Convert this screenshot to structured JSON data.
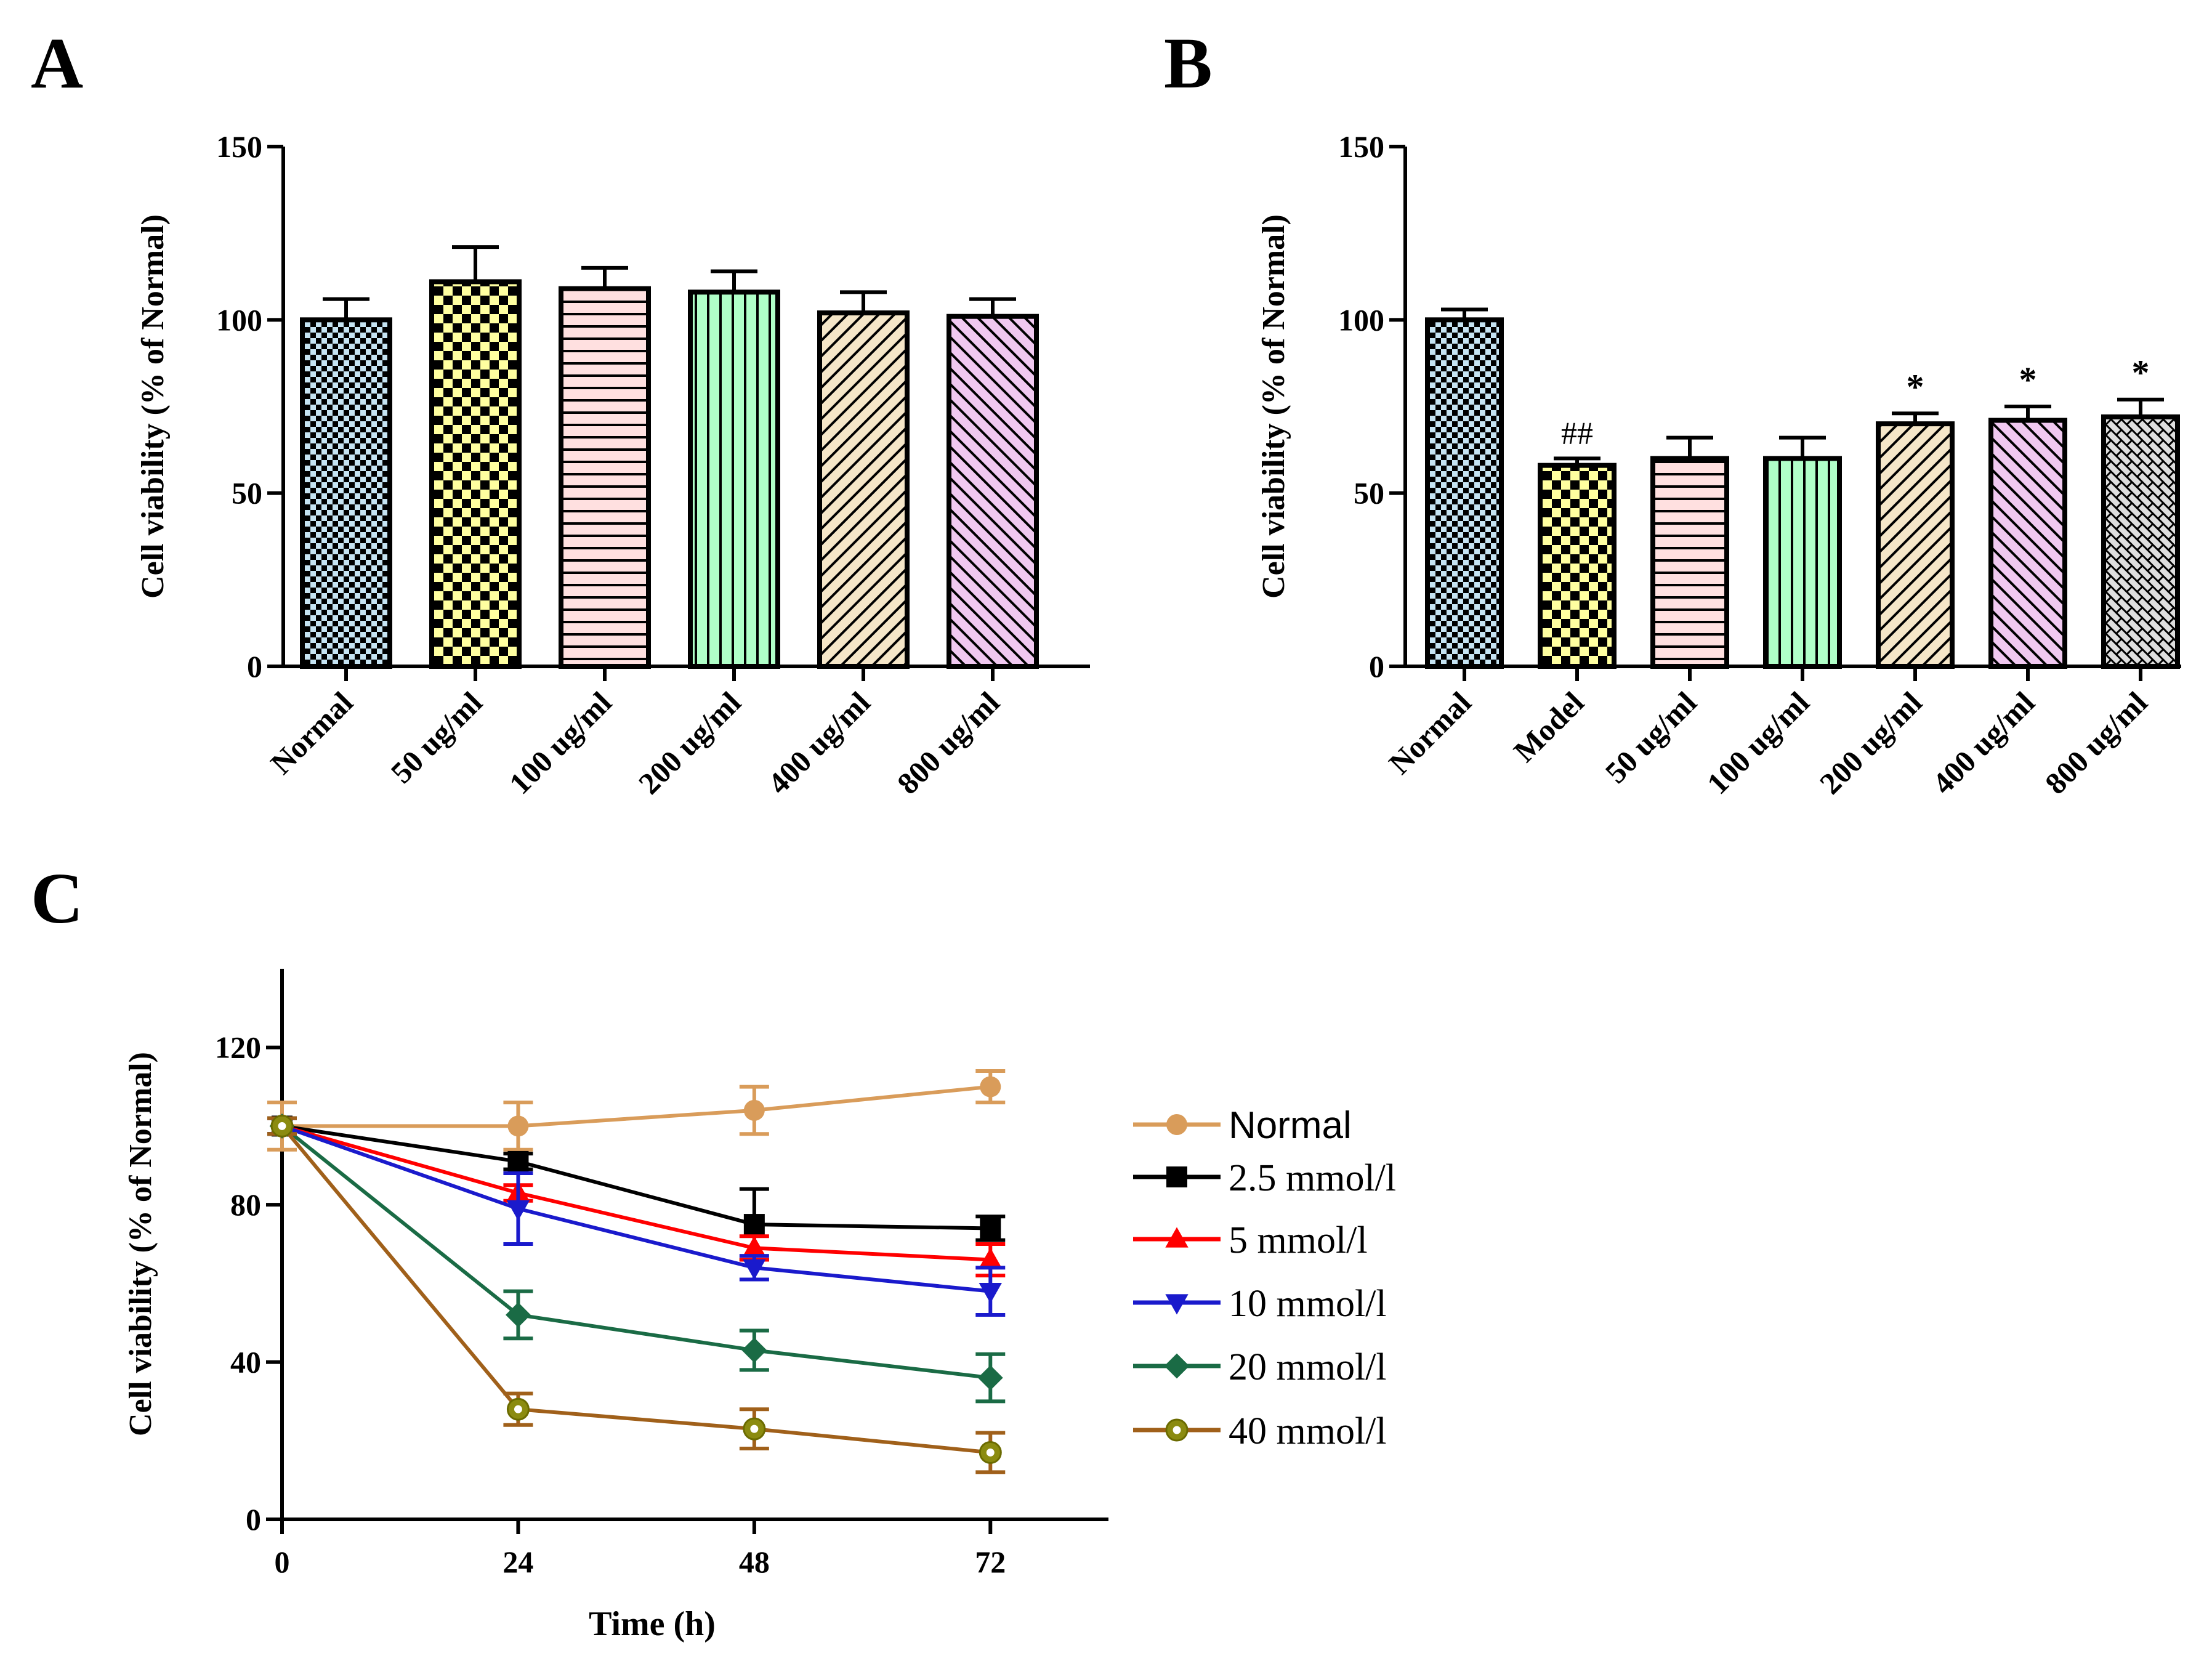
{
  "panels": {
    "a": "A",
    "b": "B",
    "c": "C"
  },
  "colors": {
    "axis": "#000000",
    "normal_line": "#d99c5a",
    "c2_5": "#000000",
    "c5": "#ff0000",
    "c10": "#1a1acc",
    "c20": "#1a6b45",
    "c40": "#a0601a",
    "c40_marker": "#8b8b10"
  },
  "chart_data": [
    {
      "id": "A",
      "type": "bar",
      "title": "",
      "ylabel": "Cell viability (% of Normal)",
      "xlabel": "",
      "ylim": [
        0,
        150
      ],
      "yticks": [
        "0",
        "50",
        "100",
        "150"
      ],
      "categories": [
        "Normal",
        "50 ug/ml",
        "100 ug/ml",
        "200 ug/ml",
        "400 ug/ml",
        "800 ug/ml"
      ],
      "values": [
        100,
        111,
        109,
        108,
        102,
        101
      ],
      "errors": [
        6,
        10,
        6,
        6,
        6,
        5
      ],
      "annotations": [
        "",
        "",
        "",
        "",
        "",
        ""
      ],
      "fill_colors": [
        "#c5e3f2",
        "#ffffa0",
        "#ffe0e0",
        "#b0ffc8",
        "#f5e6c8",
        "#f0c8f0"
      ],
      "patterns": [
        "checker-fine",
        "checker-big",
        "hlines",
        "vlines",
        "diag",
        "diag"
      ]
    },
    {
      "id": "B",
      "type": "bar",
      "title": "",
      "ylabel": "Cell viability (% of Normal)",
      "xlabel": "",
      "ylim": [
        0,
        150
      ],
      "yticks": [
        "0",
        "50",
        "100",
        "150"
      ],
      "categories": [
        "Normal",
        "Model",
        "50 ug/ml",
        "100 ug/ml",
        "200 ug/ml",
        "400 ug/ml",
        "800 ug/ml"
      ],
      "values": [
        100,
        58,
        60,
        60,
        70,
        71,
        72
      ],
      "errors": [
        3,
        2,
        6,
        6,
        3,
        4,
        5
      ],
      "annotations": [
        "",
        "##",
        "",
        "",
        "*",
        "*",
        "*"
      ],
      "fill_colors": [
        "#c5e3f2",
        "#ffffa0",
        "#ffe0e0",
        "#b0ffc8",
        "#f5e6c8",
        "#f0c8f0",
        "#dedede"
      ],
      "patterns": [
        "checker-fine",
        "checker-big",
        "hlines",
        "vlines",
        "diag",
        "diag",
        "bricks"
      ]
    },
    {
      "id": "C",
      "type": "line",
      "title": "",
      "ylabel": "Cell viability (% of Normal)",
      "xlabel": "Time (h)",
      "xlim": [
        0,
        84
      ],
      "ylim": [
        0,
        140
      ],
      "xticks": [
        "0",
        "24",
        "48",
        "72"
      ],
      "yticks": [
        "0",
        "40",
        "80",
        "120"
      ],
      "x": [
        0,
        24,
        48,
        72
      ],
      "series": [
        {
          "name": "Normal",
          "values": [
            100,
            100,
            104,
            110
          ],
          "errors": [
            6,
            6,
            6,
            4
          ],
          "marker": "circle",
          "color": "#d99c5a"
        },
        {
          "name": "2.5 mmol/l",
          "values": [
            100,
            91,
            75,
            74
          ],
          "errors": [
            2,
            2,
            9,
            3
          ],
          "marker": "square",
          "color": "#000000"
        },
        {
          "name": "5 mmol/l",
          "values": [
            100,
            83,
            69,
            66
          ],
          "errors": [
            2,
            2,
            3,
            4
          ],
          "marker": "triangle-up",
          "color": "#ff0000"
        },
        {
          "name": "10 mmol/l",
          "values": [
            100,
            79,
            64,
            58
          ],
          "errors": [
            2,
            9,
            3,
            6
          ],
          "marker": "triangle-down",
          "color": "#1a1acc"
        },
        {
          "name": "20 mmol/l",
          "values": [
            100,
            52,
            43,
            36
          ],
          "errors": [
            2,
            6,
            5,
            6
          ],
          "marker": "diamond",
          "color": "#1a6b45"
        },
        {
          "name": "40 mmol/l",
          "values": [
            100,
            28,
            23,
            17
          ],
          "errors": [
            2,
            4,
            5,
            5
          ],
          "marker": "circle-dot",
          "color": "#a0601a"
        }
      ]
    }
  ]
}
